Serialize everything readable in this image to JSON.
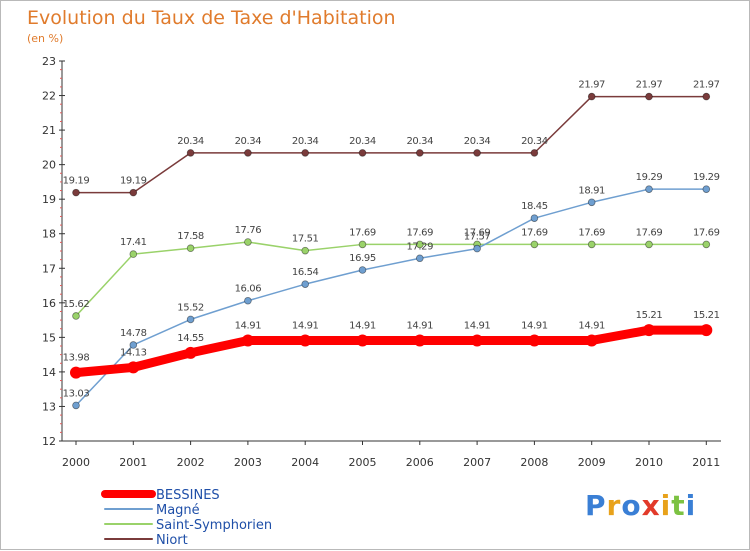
{
  "title": "Evolution du Taux de Taxe d'Habitation",
  "subtitle": "(en %)",
  "logo": {
    "text": "Proxiti",
    "colors": [
      "#3a7fd5",
      "#e8a21b",
      "#3a7fd5",
      "#e23a2a",
      "#e8a21b",
      "#7cc242",
      "#3a7fd5"
    ]
  },
  "chart_data": {
    "type": "line",
    "x": [
      "2000",
      "2001",
      "2002",
      "2003",
      "2004",
      "2005",
      "2006",
      "2007",
      "2008",
      "2009",
      "2010",
      "2011"
    ],
    "ylim": [
      12,
      23
    ],
    "yticks": [
      12,
      13,
      14,
      15,
      16,
      17,
      18,
      19,
      20,
      21,
      22,
      23
    ],
    "grid": false,
    "legend": "bottom-left",
    "series": [
      {
        "name": "BESSINES",
        "color": "#ff0000",
        "values": [
          13.98,
          14.13,
          14.55,
          14.91,
          14.91,
          14.91,
          14.91,
          14.91,
          14.91,
          14.91,
          15.21,
          15.21
        ],
        "labels": [
          "13.98",
          "14.13",
          "14.55",
          "14.91",
          "14.91",
          "14.91",
          "14.91",
          "14.91",
          "14.91",
          "14.91",
          "15.21",
          "15.21"
        ]
      },
      {
        "name": "Magné",
        "color": "#6f9fd0",
        "values": [
          13.03,
          14.78,
          15.52,
          16.06,
          16.54,
          16.95,
          17.29,
          17.57,
          18.45,
          18.91,
          19.29,
          19.29
        ],
        "labels": [
          "13.03",
          "14.78",
          "15.52",
          "16.06",
          "16.54",
          "16.95",
          "17.29",
          "17.57",
          "18.45",
          "18.91",
          "19.29",
          "19.29"
        ]
      },
      {
        "name": "Saint-Symphorien",
        "color": "#9ad26a",
        "values": [
          15.62,
          17.41,
          17.58,
          17.76,
          17.51,
          17.69,
          17.69,
          17.69,
          17.69,
          17.69,
          17.69,
          17.69
        ],
        "labels": [
          "15.62",
          "17.41",
          "17.58",
          "17.76",
          "17.51",
          "17.69",
          "17.69",
          "17.69",
          "17.69",
          "17.69",
          "17.69",
          "17.69"
        ]
      },
      {
        "name": "Niort",
        "color": "#7a3b3b",
        "values": [
          19.19,
          19.19,
          20.34,
          20.34,
          20.34,
          20.34,
          20.34,
          20.34,
          20.34,
          21.97,
          21.97,
          21.97
        ],
        "labels": [
          "19.19",
          "19.19",
          "20.34",
          "20.34",
          "20.34",
          "20.34",
          "20.34",
          "20.34",
          "20.34",
          "21.97",
          "21.97",
          "21.97"
        ]
      }
    ]
  }
}
